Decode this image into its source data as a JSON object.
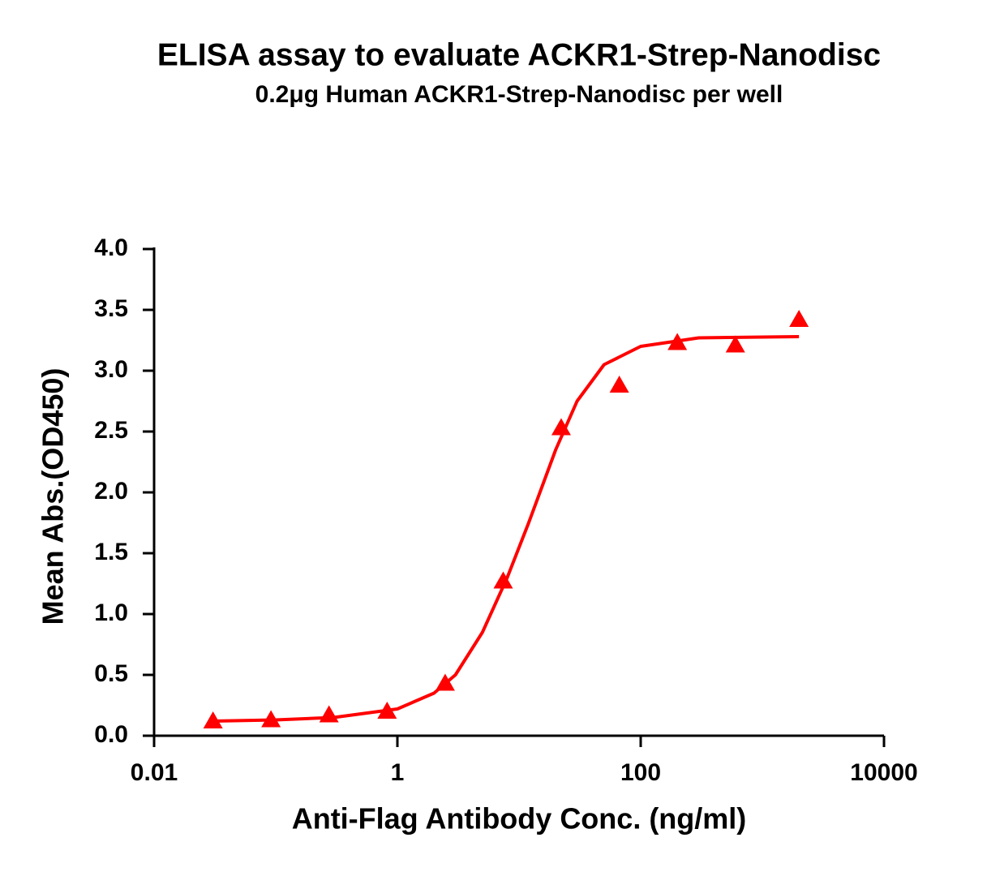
{
  "chart_data": {
    "type": "scatter",
    "title": "ELISA assay to evaluate ACKR1-Strep-Nanodisc",
    "subtitle": "0.2μg Human ACKR1-Strep-Nanodisc per well",
    "x_label": "Anti-Flag Antibody Conc. (ng/ml)",
    "y_label": "Mean Abs.(OD450)",
    "x_scale": "log",
    "x": [
      0.0305,
      0.0914,
      0.274,
      0.823,
      2.47,
      7.41,
      22.2,
      66.7,
      200,
      600,
      2000
    ],
    "series": [
      {
        "color": "#ff0000",
        "marker": "triangle",
        "values": [
          0.12,
          0.13,
          0.17,
          0.2,
          0.43,
          1.27,
          2.53,
          2.88,
          3.23,
          3.21,
          3.42
        ]
      },
      {
        "color": "#ff0000",
        "style": "line",
        "x": [
          0.03,
          0.1,
          0.3,
          1,
          2,
          3,
          5,
          8,
          12,
          20,
          30,
          50,
          100,
          300,
          2000
        ],
        "values": [
          0.12,
          0.13,
          0.15,
          0.22,
          0.35,
          0.5,
          0.85,
          1.3,
          1.75,
          2.35,
          2.75,
          3.05,
          3.2,
          3.27,
          3.28
        ]
      }
    ],
    "xlim": [
      0.01,
      10000
    ],
    "xticks": [
      0.01,
      1,
      100,
      10000
    ],
    "ylim": [
      0,
      4
    ],
    "yticks": [
      {
        "value": 0,
        "label": "0.0"
      },
      0.5,
      {
        "value": 1,
        "label": "1.0"
      },
      1.5,
      {
        "value": 2,
        "label": "2.0"
      },
      2.5,
      {
        "value": 3,
        "label": "3.0"
      },
      3.5,
      {
        "value": 4,
        "label": "4.0"
      }
    ]
  }
}
